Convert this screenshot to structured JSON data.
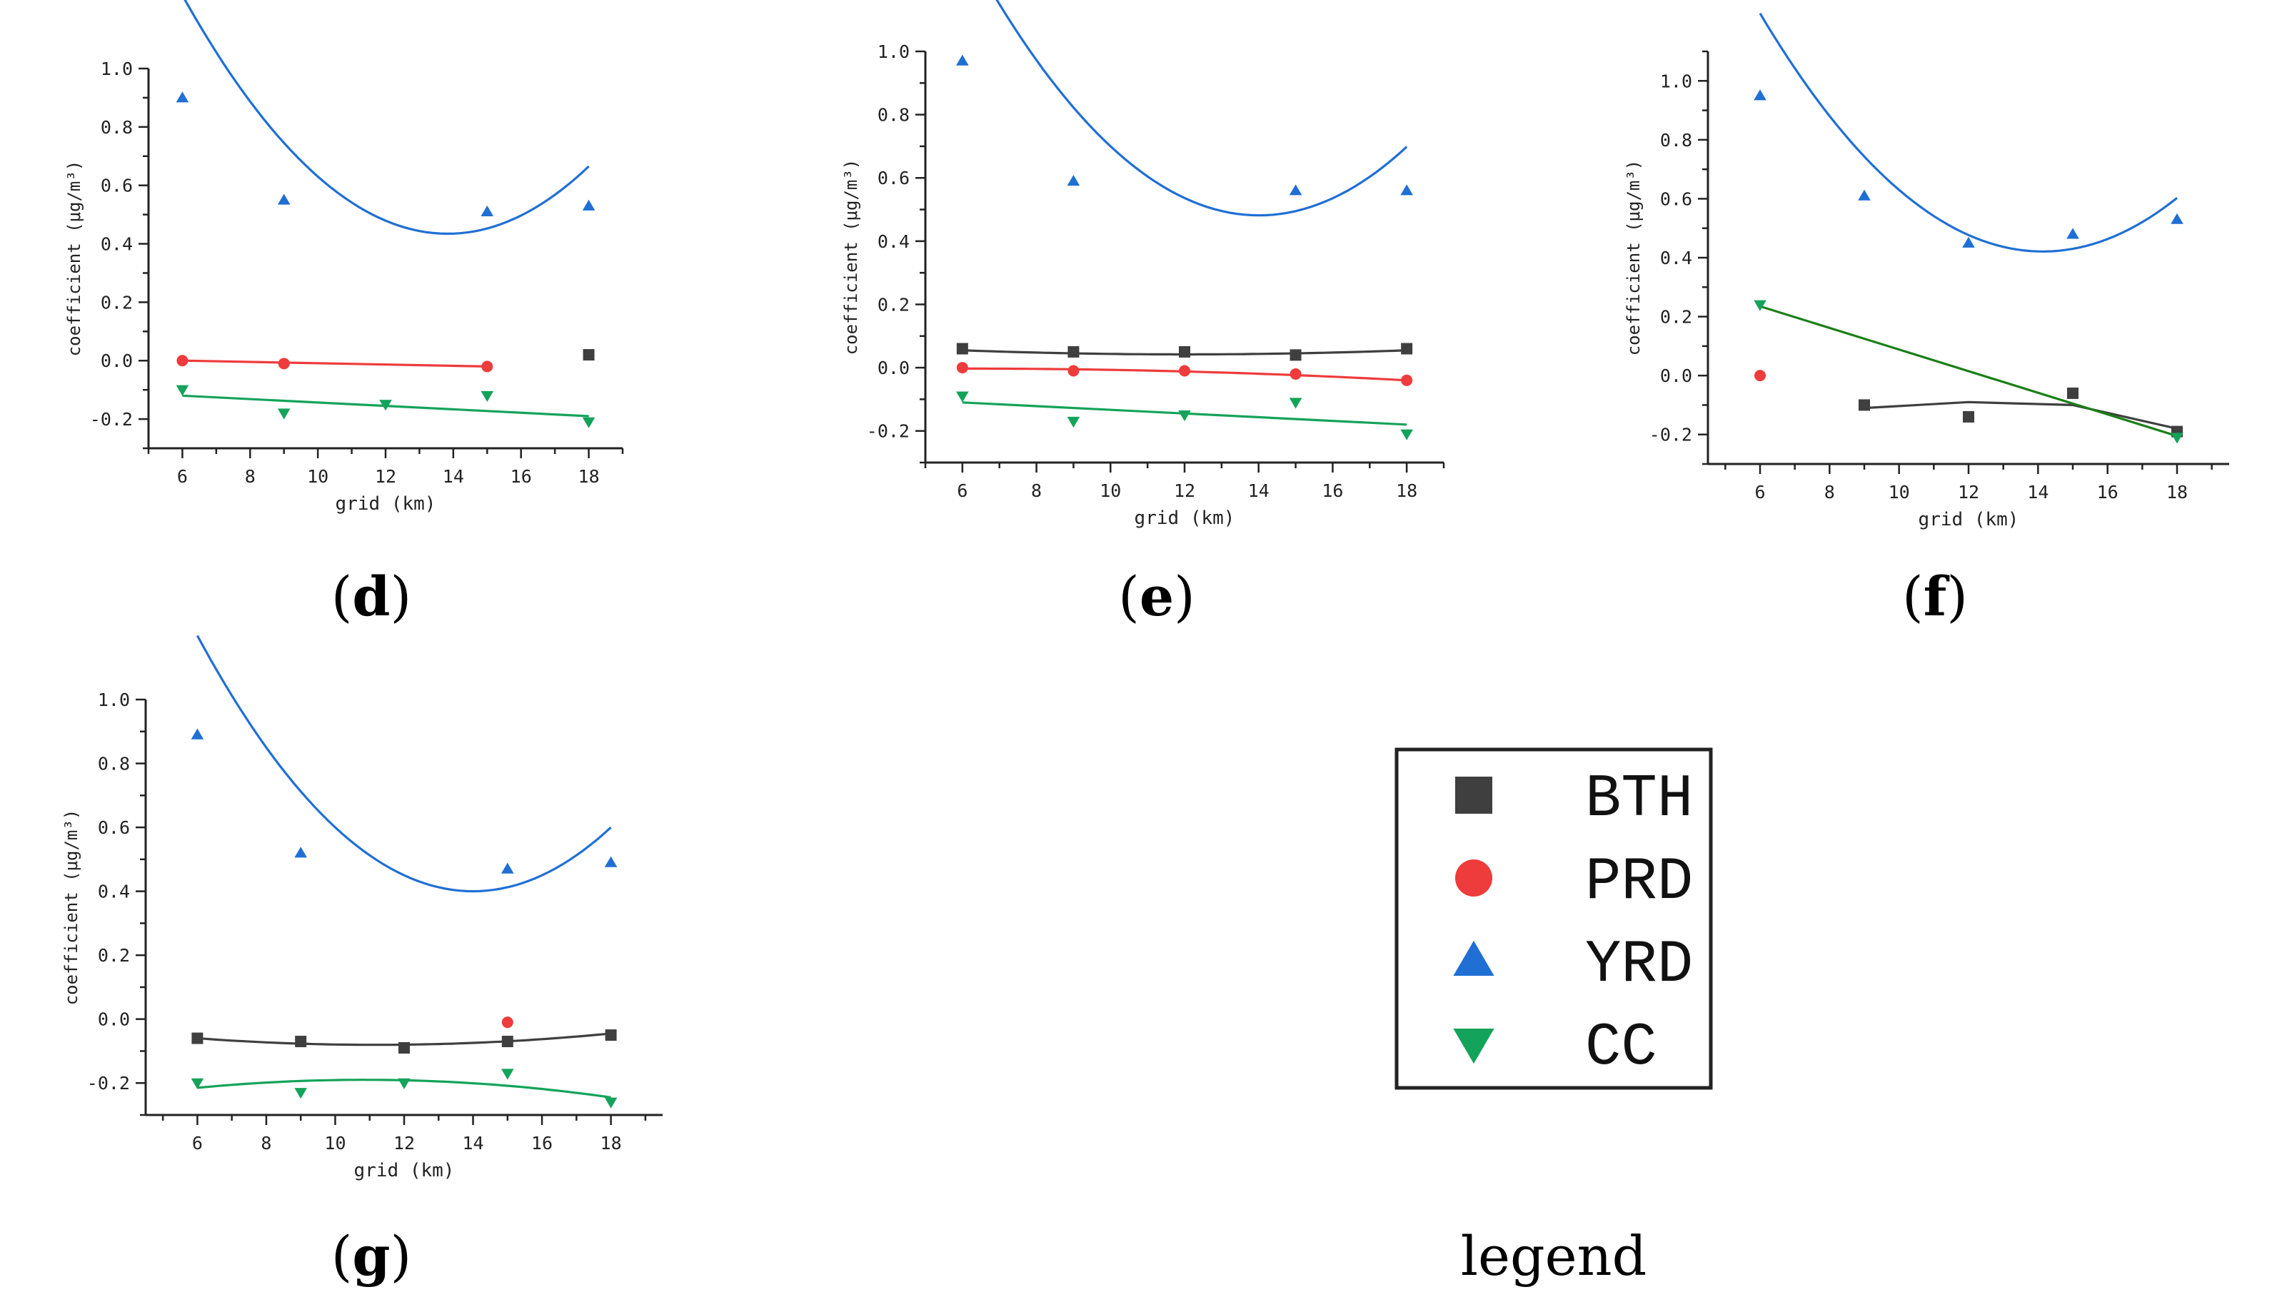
{
  "colors": {
    "BTH": "#3f3f3f",
    "PRD": "#ee3b3b",
    "YRD": "#1f6fd4",
    "CC": "#14a35a",
    "CC_fit_f": "#1a7f16",
    "axis": "#222222"
  },
  "legend": {
    "items": [
      {
        "key": "BTH",
        "label": "BTH",
        "marker": "square"
      },
      {
        "key": "PRD",
        "label": "PRD",
        "marker": "circle"
      },
      {
        "key": "YRD",
        "label": "YRD",
        "marker": "triangle-up"
      },
      {
        "key": "CC",
        "label": "CC",
        "marker": "triangle-down"
      }
    ],
    "caption": "legend"
  },
  "chart_data": [
    {
      "id": "d",
      "type": "scatter",
      "caption_letter": "d",
      "xlabel": "grid (km)",
      "ylabel": "coefficient (μg/m³)",
      "xlim": [
        5,
        19
      ],
      "ylim": [
        -0.3,
        1.0
      ],
      "xticks": [
        "6",
        "8",
        "10",
        "12",
        "14",
        "16",
        "18"
      ],
      "yticks": [
        "-0.2",
        "0.0",
        "0.2",
        "0.4",
        "0.6",
        "0.8",
        "1.0"
      ],
      "series": [
        {
          "name": "BTH",
          "x": [
            18
          ],
          "y": [
            0.02
          ],
          "fit": null
        },
        {
          "name": "PRD",
          "x": [
            6,
            9,
            15
          ],
          "y": [
            0.0,
            -0.01,
            -0.02
          ],
          "fit": [
            [
              6,
              0.0
            ],
            [
              15,
              -0.02
            ]
          ]
        },
        {
          "name": "YRD",
          "x": [
            6,
            9,
            15,
            18
          ],
          "y": [
            0.9,
            0.55,
            0.51,
            0.53
          ],
          "fit": "quad:0.0133,-0.368,2.98:6:18"
        },
        {
          "name": "CC",
          "x": [
            6,
            9,
            12,
            15,
            18
          ],
          "y": [
            -0.1,
            -0.18,
            -0.15,
            -0.12,
            -0.21
          ],
          "fit": [
            [
              6,
              -0.12
            ],
            [
              18,
              -0.19
            ]
          ]
        }
      ]
    },
    {
      "id": "e",
      "type": "scatter",
      "caption_letter": "e",
      "xlabel": "grid (km)",
      "ylabel": "coefficient (μg/m³)",
      "xlim": [
        5,
        19
      ],
      "ylim": [
        -0.3,
        1.0
      ],
      "xticks": [
        "6",
        "8",
        "10",
        "12",
        "14",
        "16",
        "18"
      ],
      "yticks": [
        "-0.2",
        "0.0",
        "0.2",
        "0.4",
        "0.6",
        "0.8",
        "1.0"
      ],
      "series": [
        {
          "name": "BTH",
          "x": [
            6,
            9,
            12,
            15,
            18
          ],
          "y": [
            0.06,
            0.05,
            0.05,
            0.04,
            0.06
          ],
          "fit": [
            [
              6,
              0.055
            ],
            [
              12,
              0.042
            ],
            [
              18,
              0.055
            ]
          ]
        },
        {
          "name": "PRD",
          "x": [
            6,
            9,
            12,
            15,
            18
          ],
          "y": [
            0.0,
            -0.01,
            -0.01,
            -0.02,
            -0.04
          ],
          "fit": [
            [
              6,
              -0.003
            ],
            [
              12,
              -0.012
            ],
            [
              18,
              -0.04
            ]
          ]
        },
        {
          "name": "YRD",
          "x": [
            6,
            9,
            15,
            18
          ],
          "y": [
            0.97,
            0.59,
            0.56,
            0.56
          ],
          "fit": "quad:0.0136,-0.381,3.15:6:18"
        },
        {
          "name": "CC",
          "x": [
            6,
            9,
            12,
            15,
            18
          ],
          "y": [
            -0.09,
            -0.17,
            -0.15,
            -0.11,
            -0.21
          ],
          "fit": [
            [
              6,
              -0.11
            ],
            [
              18,
              -0.18
            ]
          ]
        }
      ]
    },
    {
      "id": "f",
      "type": "scatter",
      "caption_letter": "f",
      "xlabel": "grid (km)",
      "ylabel": "coefficient (μg/m³)",
      "xlim": [
        4.5,
        19.5
      ],
      "ylim": [
        -0.3,
        1.1
      ],
      "xticks": [
        "6",
        "8",
        "10",
        "12",
        "14",
        "16",
        "18"
      ],
      "yticks": [
        "-0.2",
        "0.0",
        "0.2",
        "0.4",
        "0.6",
        "0.8",
        "1.0"
      ],
      "series": [
        {
          "name": "BTH",
          "x": [
            9,
            12,
            15,
            18
          ],
          "y": [
            -0.1,
            -0.14,
            -0.06,
            -0.19
          ],
          "fit": [
            [
              9,
              -0.11
            ],
            [
              12,
              -0.09
            ],
            [
              15,
              -0.1
            ],
            [
              18,
              -0.18
            ]
          ]
        },
        {
          "name": "PRD",
          "x": [
            6
          ],
          "y": [
            0.0
          ],
          "fit": null
        },
        {
          "name": "YRD",
          "x": [
            6,
            9,
            12,
            15,
            18
          ],
          "y": [
            0.95,
            0.61,
            0.45,
            0.48,
            0.53
          ],
          "fit": "quad:0.0122,-0.345,2.86:6:18"
        },
        {
          "name": "CC",
          "x": [
            6,
            18
          ],
          "y": [
            0.24,
            -0.21
          ],
          "fit": [
            [
              6,
              0.235
            ],
            [
              18,
              -0.205
            ]
          ]
        }
      ]
    },
    {
      "id": "g",
      "type": "scatter",
      "caption_letter": "g",
      "xlabel": "grid (km)",
      "ylabel": "coefficient (μg/m³)",
      "xlim": [
        4.5,
        19.5
      ],
      "ylim": [
        -0.3,
        1.0
      ],
      "xticks": [
        "6",
        "8",
        "10",
        "12",
        "14",
        "16",
        "18"
      ],
      "yticks": [
        "-0.2",
        "0.0",
        "0.2",
        "0.4",
        "0.6",
        "0.8",
        "1.0"
      ],
      "series": [
        {
          "name": "BTH",
          "x": [
            6,
            9,
            12,
            15,
            18
          ],
          "y": [
            -0.06,
            -0.07,
            -0.09,
            -0.07,
            -0.05
          ],
          "fit": [
            [
              6,
              -0.06
            ],
            [
              12,
              -0.08
            ],
            [
              18,
              -0.045
            ]
          ]
        },
        {
          "name": "PRD",
          "x": [
            15
          ],
          "y": [
            -0.01
          ],
          "fit": null
        },
        {
          "name": "YRD",
          "x": [
            6,
            9,
            15,
            18
          ],
          "y": [
            0.89,
            0.52,
            0.47,
            0.49
          ],
          "fit": "quad:0.0125,-0.35,2.85:6:18"
        },
        {
          "name": "CC",
          "x": [
            6,
            9,
            12,
            15,
            18
          ],
          "y": [
            -0.2,
            -0.23,
            -0.2,
            -0.17,
            -0.26
          ],
          "fit": [
            [
              6,
              -0.215
            ],
            [
              11,
              -0.19
            ],
            [
              18,
              -0.245
            ]
          ]
        }
      ]
    }
  ]
}
